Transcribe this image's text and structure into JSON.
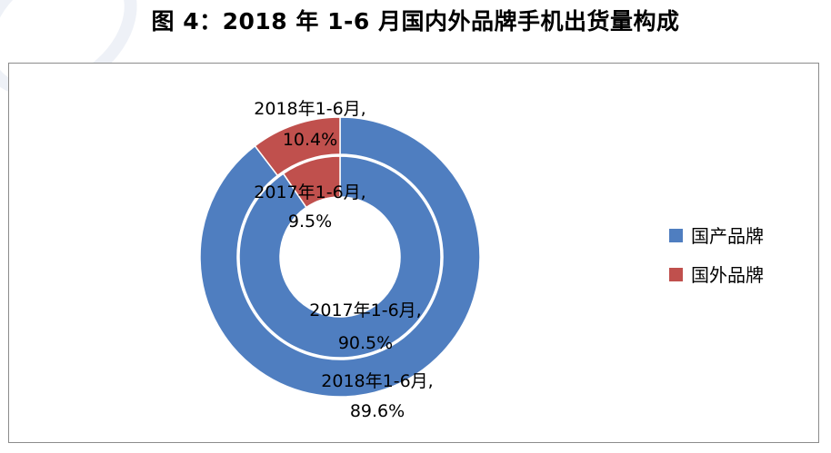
{
  "page": {
    "title": "图 4：2018 年 1-6 月国内外品牌手机出货量构成"
  },
  "chart_data": {
    "type": "pie",
    "variant": "nested-donut",
    "title": "图 4：2018 年 1-6 月国内外品牌手机出货量构成",
    "legend_position": "right",
    "legend": [
      {
        "name": "国产品牌",
        "color": "#4f7ec0"
      },
      {
        "name": "国外品牌",
        "color": "#c0504d"
      }
    ],
    "rings": [
      {
        "ring": "outer",
        "period": "2018年1-6月",
        "slices": [
          {
            "name": "国产品牌",
            "value": 89.6,
            "label_line1": "2018年1-6月,",
            "label_line2": "89.6%"
          },
          {
            "name": "国外品牌",
            "value": 10.4,
            "label_line1": "2018年1-6月,",
            "label_line2": "10.4%"
          }
        ]
      },
      {
        "ring": "inner",
        "period": "2017年1-6月",
        "slices": [
          {
            "name": "国产品牌",
            "value": 90.5,
            "label_line1": "2017年1-6月,",
            "label_line2": "90.5%"
          },
          {
            "name": "国外品牌",
            "value": 9.5,
            "label_line1": "2017年1-6月,",
            "label_line2": "9.5%"
          }
        ]
      }
    ]
  }
}
